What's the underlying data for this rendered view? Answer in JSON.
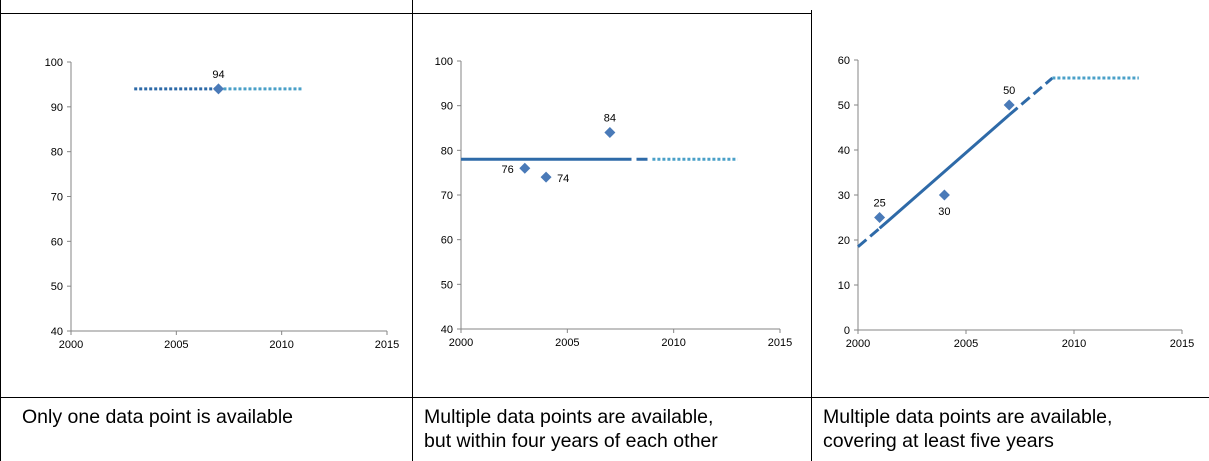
{
  "chart_data": [
    {
      "type": "scatter",
      "xlim": [
        2000,
        2015
      ],
      "ylim": [
        40,
        100
      ],
      "xticks": [
        2000,
        2005,
        2010,
        2015
      ],
      "yticks": [
        40,
        50,
        60,
        70,
        80,
        90,
        100
      ],
      "points": [
        {
          "x": 2007,
          "y": 94,
          "label": "94"
        }
      ],
      "lines": [
        {
          "style": "dotted",
          "color": "#2e6aa8",
          "x": [
            2003,
            2007
          ],
          "y": [
            94,
            94
          ]
        },
        {
          "style": "dotted",
          "color": "#4aa0c8",
          "x": [
            2007,
            2011
          ],
          "y": [
            94,
            94
          ]
        }
      ]
    },
    {
      "type": "scatter",
      "xlim": [
        2000,
        2015
      ],
      "ylim": [
        40,
        100
      ],
      "xticks": [
        2000,
        2005,
        2010,
        2015
      ],
      "yticks": [
        40,
        50,
        60,
        70,
        80,
        90,
        100
      ],
      "points": [
        {
          "x": 2003,
          "y": 76,
          "label": "76",
          "label_side": "left"
        },
        {
          "x": 2004,
          "y": 74,
          "label": "74",
          "label_side": "right"
        },
        {
          "x": 2007,
          "y": 84,
          "label": "84",
          "label_side": "top"
        }
      ],
      "lines": [
        {
          "style": "solid",
          "color": "#2e6aa8",
          "x": [
            2000,
            2007.5
          ],
          "y": [
            78,
            78
          ]
        },
        {
          "style": "dashed",
          "color": "#2e6aa8",
          "x": [
            2007.5,
            2009
          ],
          "y": [
            78,
            78
          ]
        },
        {
          "style": "dotted",
          "color": "#4aa0c8",
          "x": [
            2009,
            2013
          ],
          "y": [
            78,
            78
          ]
        }
      ]
    },
    {
      "type": "scatter",
      "xlim": [
        2000,
        2015
      ],
      "ylim": [
        0,
        60
      ],
      "xticks": [
        2000,
        2005,
        2010,
        2015
      ],
      "yticks": [
        0,
        10,
        20,
        30,
        40,
        50,
        60
      ],
      "points": [
        {
          "x": 2001,
          "y": 25,
          "label": "25",
          "label_side": "top"
        },
        {
          "x": 2004,
          "y": 30,
          "label": "30",
          "label_side": "bottom"
        },
        {
          "x": 2007,
          "y": 50,
          "label": "50",
          "label_side": "top"
        }
      ],
      "lines": [
        {
          "style": "dashed",
          "color": "#2e6aa8",
          "x": [
            2000,
            2001
          ],
          "y": [
            18.5,
            22.6
          ]
        },
        {
          "style": "solid",
          "color": "#2e6aa8",
          "x": [
            2001,
            2007
          ],
          "y": [
            22.6,
            47.8
          ]
        },
        {
          "style": "dashed",
          "color": "#2e6aa8",
          "x": [
            2007,
            2009
          ],
          "y": [
            47.8,
            56
          ]
        },
        {
          "style": "dotted",
          "color": "#4aa0c8",
          "x": [
            2009,
            2013
          ],
          "y": [
            56,
            56
          ]
        }
      ]
    }
  ],
  "captions": [
    [
      "Only one data point is available"
    ],
    [
      "Multiple data points are available,",
      "but within four years of each other"
    ],
    [
      "Multiple data points are available,",
      "covering at least five years"
    ]
  ],
  "colors": {
    "marker": "#4a7ab8",
    "axis": "#868686",
    "grid_border": "#000000"
  }
}
